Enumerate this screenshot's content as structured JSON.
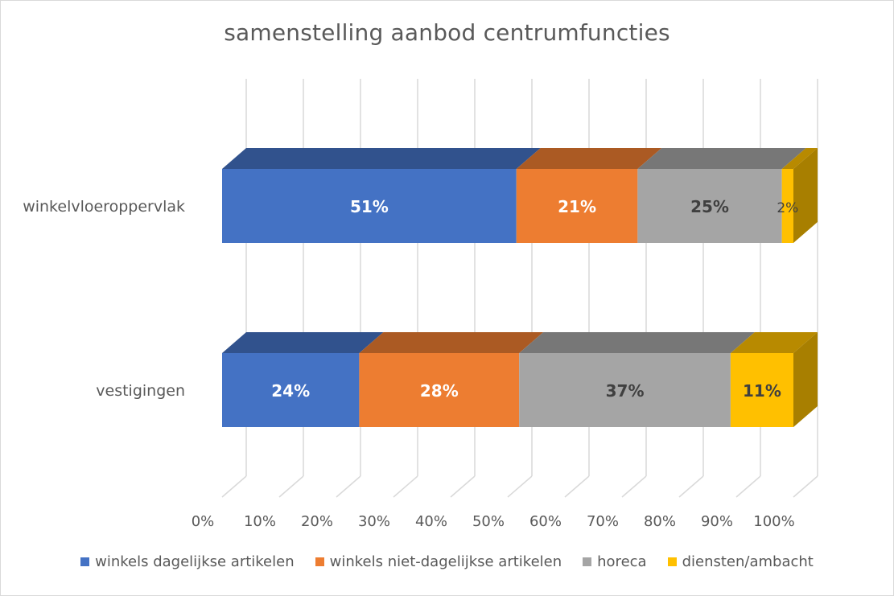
{
  "chart_data": {
    "type": "bar",
    "orientation": "horizontal",
    "stacked": "percent",
    "three_d": true,
    "title": "samenstelling aanbod centrumfuncties",
    "categories": [
      "winkelvloeroppervlak",
      "vestigingen"
    ],
    "x_ticks": [
      "0%",
      "10%",
      "20%",
      "30%",
      "40%",
      "50%",
      "60%",
      "70%",
      "80%",
      "90%",
      "100%"
    ],
    "xlim": [
      0,
      100
    ],
    "grid": true,
    "legend_position": "bottom",
    "series": [
      {
        "name": "winkels dagelijkse artikelen",
        "color": "#4472C4",
        "values": [
          51,
          24
        ],
        "labels": [
          "51%",
          "24%"
        ]
      },
      {
        "name": "winkels niet-dagelijkse artikelen",
        "color": "#ED7D31",
        "values": [
          21,
          28
        ],
        "labels": [
          "21%",
          "28%"
        ]
      },
      {
        "name": "horeca",
        "color": "#A5A5A5",
        "values": [
          25,
          37
        ],
        "labels": [
          "25%",
          "37%"
        ]
      },
      {
        "name": "diensten/ambacht",
        "color": "#FFC000",
        "values": [
          2,
          11
        ],
        "labels": [
          "2%",
          "11%"
        ]
      }
    ]
  }
}
